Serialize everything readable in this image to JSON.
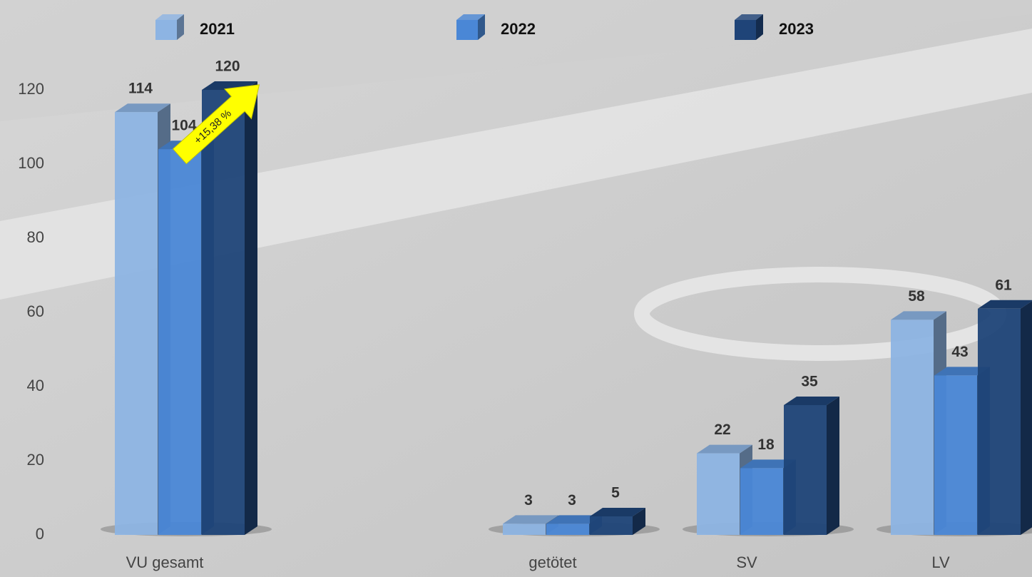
{
  "chart_data": {
    "type": "bar3d",
    "categories": [
      "VU gesamt",
      null,
      "getötet",
      "SV",
      "LV"
    ],
    "series": [
      {
        "name": "2021",
        "color": "#8db4e3",
        "values": [
          114,
          null,
          3,
          22,
          58
        ]
      },
      {
        "name": "2022",
        "color": "#4a87d6",
        "values": [
          104,
          null,
          3,
          18,
          43
        ]
      },
      {
        "name": "2023",
        "color": "#1f4478",
        "values": [
          120,
          null,
          5,
          35,
          61
        ]
      }
    ],
    "ylim": [
      0,
      120
    ],
    "yticks": [
      0,
      20,
      40,
      60,
      80,
      100,
      120
    ],
    "annotation": "+15,38 %"
  }
}
